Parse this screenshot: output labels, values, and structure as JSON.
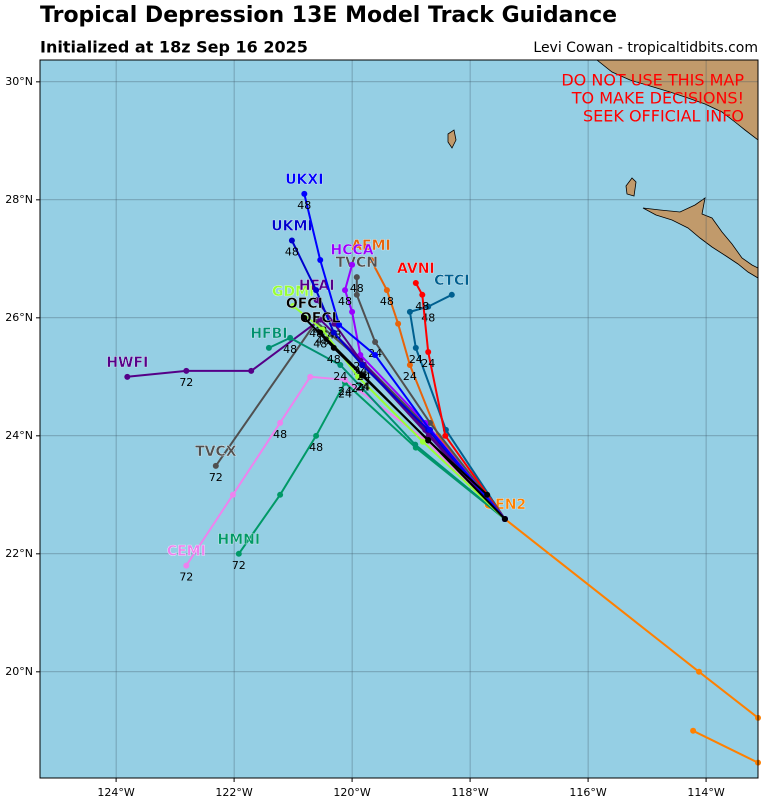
{
  "chart_data": {
    "type": "line",
    "title": "Tropical Depression 13E Model Track Guidance",
    "subtitle": "Initialized at 18z Sep 16 2025",
    "credit": "Levi Cowan - tropicaltidbits.com",
    "warning": [
      "DO NOT USE THIS MAP",
      "TO MAKE DECISIONS!",
      "SEEK OFFICIAL INFO"
    ],
    "xlim": [
      -125.29,
      -113.12
    ],
    "ylim": [
      18.2,
      30.37
    ],
    "xticks": [
      {
        "value": -124,
        "label": "124°W"
      },
      {
        "value": -122,
        "label": "122°W"
      },
      {
        "value": -120,
        "label": "120°W"
      },
      {
        "value": -118,
        "label": "118°W"
      },
      {
        "value": -116,
        "label": "116°W"
      },
      {
        "value": -114,
        "label": "114°W"
      }
    ],
    "yticks": [
      {
        "value": 20,
        "label": "20°N"
      },
      {
        "value": 22,
        "label": "22°N"
      },
      {
        "value": 24,
        "label": "24°N"
      },
      {
        "value": 26,
        "label": "26°N"
      },
      {
        "value": 28,
        "label": "28°N"
      },
      {
        "value": 30,
        "label": "30°N"
      }
    ],
    "grid": true,
    "series": [
      {
        "name": "GEN2",
        "color": "#ff8000",
        "lon": [
          -117.41,
          -114.12,
          -113.12,
          null,
          -114.22,
          -113.12
        ],
        "lat": [
          22.59,
          20.0,
          19.22,
          null,
          19.0,
          18.46
        ],
        "hour_labels": [
          null,
          null,
          null,
          null,
          null,
          null
        ]
      },
      {
        "name": "TVCX",
        "color": "#505050",
        "lon": [
          -117.41,
          -118.68,
          -119.86,
          -120.61,
          -122.31
        ],
        "lat": [
          22.59,
          24.1,
          25.29,
          25.93,
          23.49
        ],
        "hour_labels": [
          null,
          null,
          24,
          48,
          72
        ]
      },
      {
        "name": "HMNI",
        "color": "#009966",
        "lon": [
          -117.41,
          -118.92,
          -120.12,
          -120.61,
          -121.22,
          -121.92
        ],
        "lat": [
          22.59,
          23.8,
          24.9,
          24.0,
          23.0,
          22.0
        ],
        "hour_labels": [
          null,
          null,
          24,
          48,
          null,
          72
        ]
      },
      {
        "name": "CEMI",
        "color": "#ee82ee",
        "lon": [
          -117.41,
          -118.76,
          -120.12,
          -120.71,
          -121.22,
          -122.02,
          -122.81
        ],
        "lat": [
          22.59,
          23.93,
          24.95,
          25.0,
          24.22,
          23.0,
          21.8
        ],
        "hour_labels": [
          null,
          null,
          24,
          null,
          48,
          null,
          72
        ]
      },
      {
        "name": "HWFI",
        "color": "#550088",
        "lon": [
          -117.41,
          -118.76,
          -119.86,
          -120.54,
          -121.71,
          -122.81,
          -123.81
        ],
        "lat": [
          22.59,
          24.1,
          25.29,
          25.97,
          25.1,
          25.1,
          25.0
        ],
        "hour_labels": [
          null,
          null,
          24,
          48,
          null,
          72,
          null
        ]
      },
      {
        "name": "HFBI",
        "color": "#009070",
        "lon": [
          -117.41,
          -118.93,
          -120.2,
          -121.05,
          -121.41
        ],
        "lat": [
          22.59,
          23.85,
          25.2,
          25.66,
          25.49
        ],
        "hour_labels": [
          null,
          null,
          24,
          48,
          null
        ]
      },
      {
        "name": "GDMI",
        "color": "#99ff33",
        "lon": [
          -117.41,
          -118.8,
          -119.9,
          -120.5,
          -121.0
        ],
        "lat": [
          22.59,
          23.9,
          25.0,
          25.8,
          26.2
        ],
        "hour_labels": [
          null,
          null,
          24,
          48,
          null
        ]
      },
      {
        "name": "AEMI",
        "color": "#e8640a",
        "lon": [
          -117.41,
          -118.54,
          -119.02,
          -119.22,
          -119.41,
          -119.68
        ],
        "lat": [
          22.59,
          24.0,
          25.2,
          25.9,
          26.47,
          26.98
        ],
        "hour_labels": [
          null,
          null,
          24,
          null,
          48,
          null
        ]
      },
      {
        "name": "CTCI",
        "color": "#006090",
        "lon": [
          -117.41,
          -118.41,
          -118.92,
          -119.02,
          -118.71,
          -118.31
        ],
        "lat": [
          22.59,
          24.1,
          25.49,
          26.1,
          26.19,
          26.39
        ],
        "hour_labels": [
          null,
          null,
          24,
          null,
          48,
          null
        ]
      },
      {
        "name": "AVNI",
        "color": "#ff0000",
        "lon": [
          -117.41,
          -118.42,
          -118.71,
          -118.81,
          -118.92
        ],
        "lat": [
          22.59,
          24.0,
          25.42,
          26.39,
          26.59
        ],
        "hour_labels": [
          null,
          null,
          24,
          48,
          null
        ]
      },
      {
        "name": "TVCN",
        "color": "#505050",
        "lon": [
          -117.41,
          -118.68,
          -119.61,
          -119.92,
          -119.92
        ],
        "lat": [
          22.59,
          24.22,
          25.59,
          26.39,
          26.69
        ],
        "hour_labels": [
          null,
          null,
          24,
          null,
          48
        ]
      },
      {
        "name": "HCCA",
        "color": "#9900ff",
        "lon": [
          -117.41,
          -118.76,
          -119.86,
          -120.0,
          -120.12,
          -120.0
        ],
        "lat": [
          22.59,
          24.22,
          25.37,
          26.1,
          26.47,
          26.9
        ],
        "hour_labels": [
          null,
          null,
          24,
          null,
          48,
          null
        ]
      },
      {
        "name": "HFAI",
        "color": "#550088",
        "lon": [
          -117.41,
          -118.7,
          -119.8,
          -120.3,
          -120.6
        ],
        "lat": [
          22.59,
          24.0,
          25.2,
          25.9,
          26.3
        ],
        "hour_labels": [
          null,
          null,
          24,
          48,
          null
        ]
      },
      {
        "name": "UKMI",
        "color": "#0000cd",
        "lon": [
          -117.41,
          -118.71,
          -119.83,
          -120.31,
          -120.61,
          -121.02
        ],
        "lat": [
          22.59,
          24.1,
          25.2,
          25.75,
          26.47,
          27.31
        ],
        "hour_labels": [
          null,
          null,
          null,
          null,
          null,
          48
        ]
      },
      {
        "name": "UKXI",
        "color": "#0000ff",
        "lon": [
          -117.41,
          -118.68,
          -119.61,
          -120.22,
          -120.54,
          -120.81
        ],
        "lat": [
          22.59,
          24.1,
          25.37,
          25.88,
          26.98,
          28.1
        ],
        "hour_labels": [
          null,
          null,
          null,
          null,
          null,
          48
        ]
      },
      {
        "name": "OFCL",
        "color": "#000000",
        "lon": [
          -117.71,
          -118.71,
          -119.81,
          -120.54
        ],
        "lat": [
          23.0,
          23.92,
          25.02,
          25.75
        ],
        "hour_labels": [
          null,
          null,
          24,
          48
        ]
      },
      {
        "name": "OFCI",
        "color": "#000000",
        "lon": [
          -117.41,
          -118.71,
          -119.83,
          -120.31,
          -120.81
        ],
        "lat": [
          22.59,
          23.93,
          25.02,
          25.49,
          26.0
        ],
        "hour_labels": [
          null,
          null,
          24,
          48,
          null
        ]
      }
    ]
  }
}
